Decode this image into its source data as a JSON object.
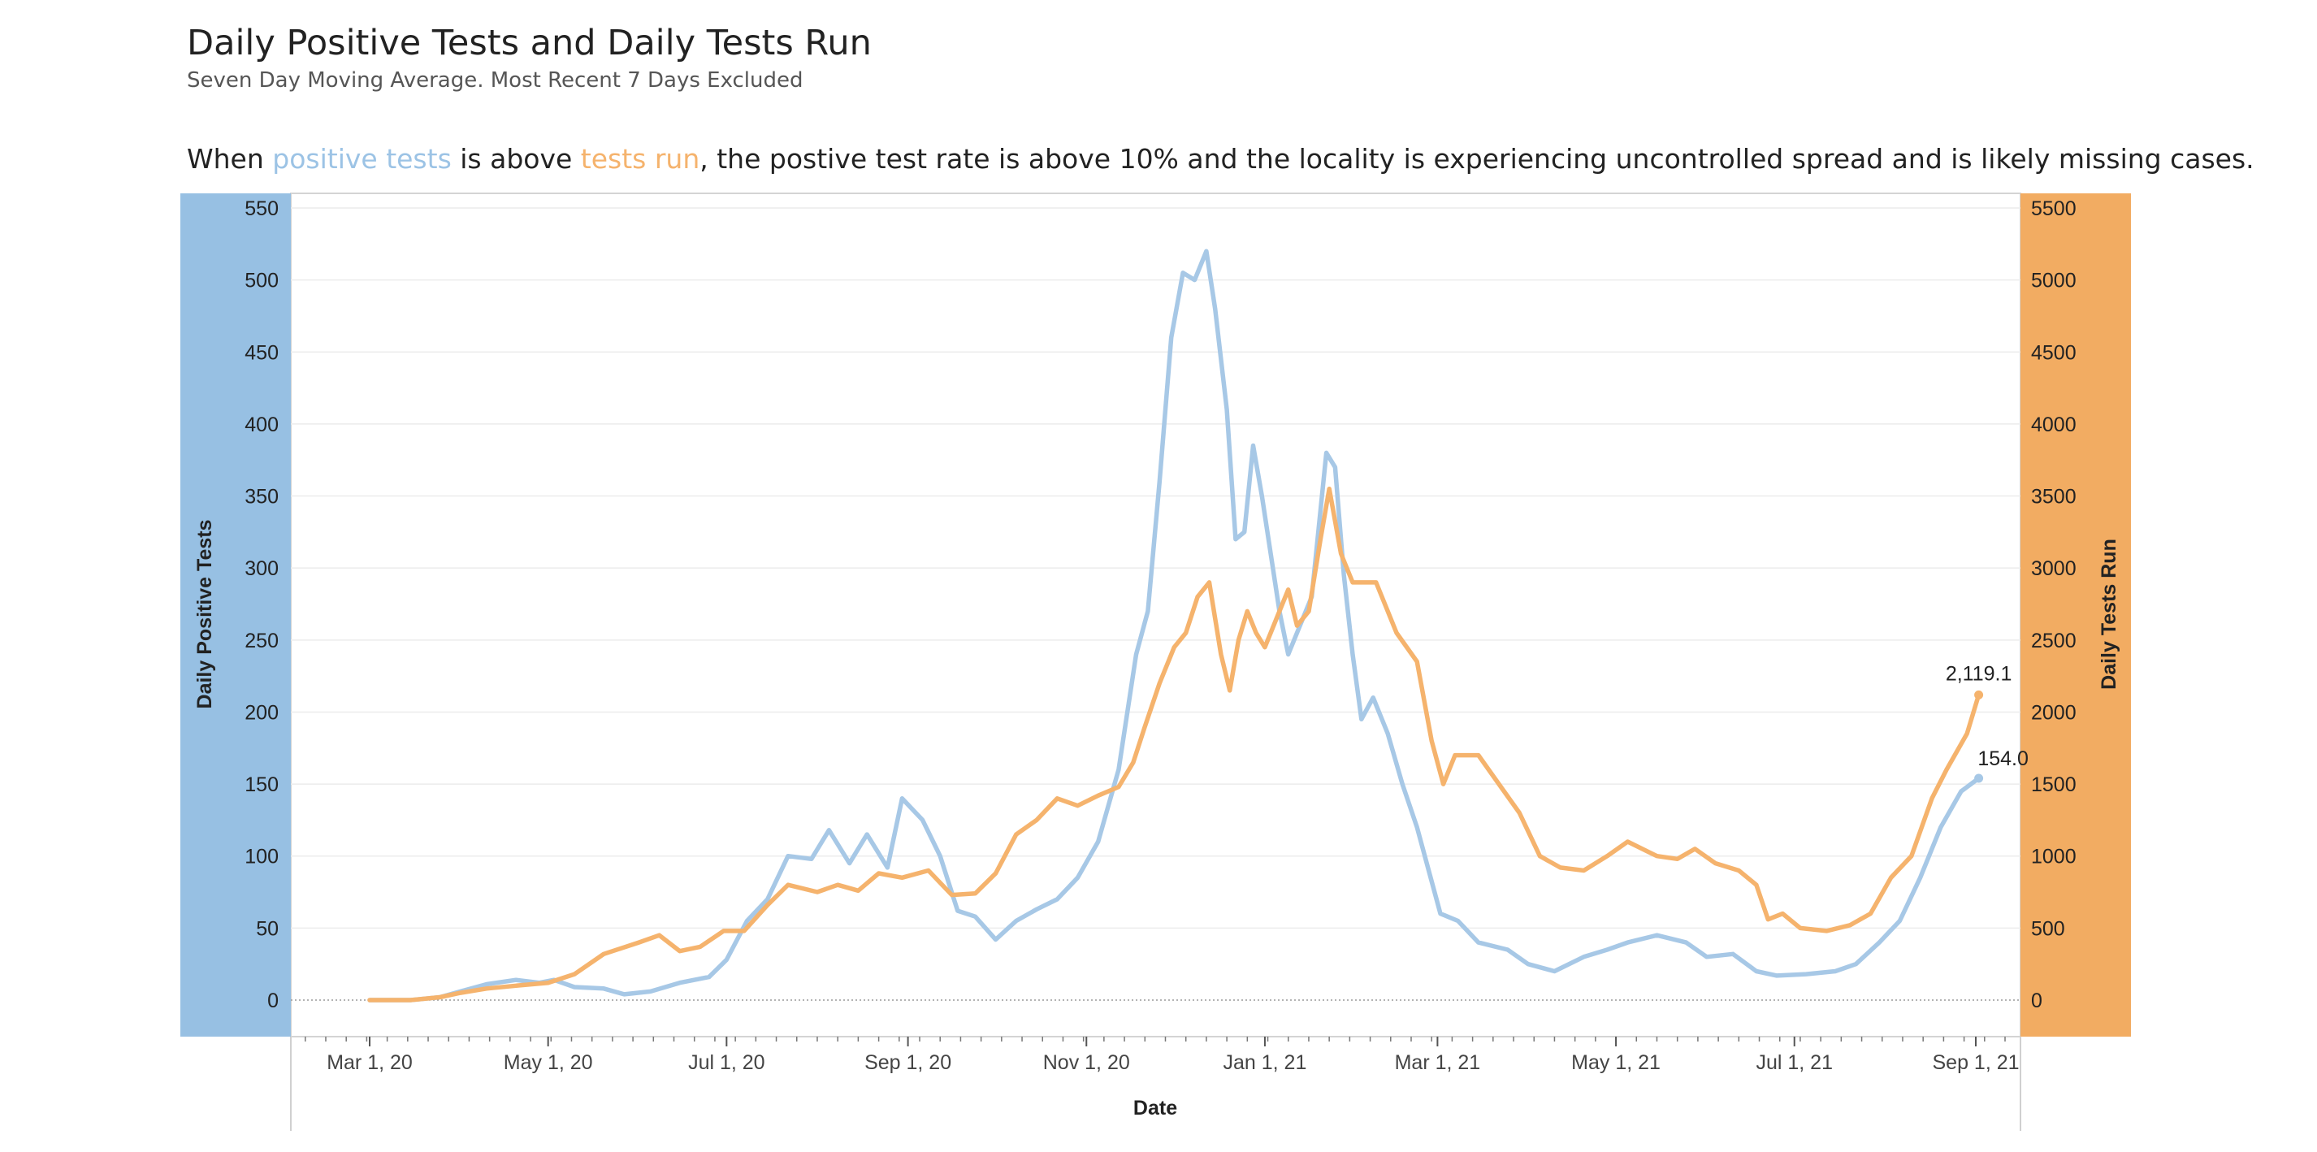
{
  "header": {
    "title": "Daily Positive Tests and Daily Tests Run",
    "subtitle": "Seven Day Moving Average. Most Recent 7 Days Excluded"
  },
  "note": {
    "prefix": "When ",
    "positive": "positive tests",
    "middle": " is above ",
    "run": "tests run",
    "suffix": ", the postive test rate is above 10% and the locality is experiencing uncontrolled spread and is likely missing cases."
  },
  "colors": {
    "positive": "#a7c8e6",
    "tests_run": "#f5b36d",
    "left_band": "#97c0e3",
    "right_band": "#f2ac62"
  },
  "chart_data": {
    "type": "line",
    "xlabel": "Date",
    "ylabel_left": "Daily Positive Tests",
    "ylabel_right": "Daily Tests Run",
    "ylim_left": [
      0,
      550
    ],
    "ylim_right": [
      0,
      5500
    ],
    "y_ticks_left": [
      "0",
      "50",
      "100",
      "150",
      "200",
      "250",
      "300",
      "350",
      "400",
      "450",
      "500",
      "550"
    ],
    "y_ticks_right": [
      "0",
      "500",
      "1000",
      "1500",
      "2000",
      "2500",
      "3000",
      "3500",
      "4000",
      "4500",
      "5000",
      "5500"
    ],
    "x_ticks": [
      {
        "date": "2020-03-01",
        "label": "Mar 1, 20"
      },
      {
        "date": "2020-05-01",
        "label": "May 1, 20"
      },
      {
        "date": "2020-07-01",
        "label": "Jul 1, 20"
      },
      {
        "date": "2020-09-01",
        "label": "Sep 1, 20"
      },
      {
        "date": "2020-11-01",
        "label": "Nov 1, 20"
      },
      {
        "date": "2021-01-01",
        "label": "Jan 1, 21"
      },
      {
        "date": "2021-03-01",
        "label": "Mar 1, 21"
      },
      {
        "date": "2021-05-01",
        "label": "May 1, 21"
      },
      {
        "date": "2021-07-01",
        "label": "Jul 1, 21"
      },
      {
        "date": "2021-09-01",
        "label": "Sep 1, 21"
      }
    ],
    "x_range": [
      "2020-02-04",
      "2021-09-15"
    ],
    "grid": true,
    "series": [
      {
        "name": "Daily Positive Tests",
        "axis": "left",
        "end_label": "154.0",
        "points": [
          [
            "2020-03-01",
            0
          ],
          [
            "2020-03-15",
            0
          ],
          [
            "2020-03-25",
            2
          ],
          [
            "2020-04-01",
            6
          ],
          [
            "2020-04-10",
            11
          ],
          [
            "2020-04-20",
            14
          ],
          [
            "2020-04-28",
            12
          ],
          [
            "2020-05-03",
            14
          ],
          [
            "2020-05-10",
            9
          ],
          [
            "2020-05-20",
            8
          ],
          [
            "2020-05-27",
            4
          ],
          [
            "2020-06-05",
            6
          ],
          [
            "2020-06-15",
            12
          ],
          [
            "2020-06-25",
            16
          ],
          [
            "2020-07-01",
            28
          ],
          [
            "2020-07-08",
            55
          ],
          [
            "2020-07-15",
            70
          ],
          [
            "2020-07-22",
            100
          ],
          [
            "2020-07-30",
            98
          ],
          [
            "2020-08-05",
            118
          ],
          [
            "2020-08-12",
            95
          ],
          [
            "2020-08-18",
            115
          ],
          [
            "2020-08-25",
            92
          ],
          [
            "2020-08-30",
            140
          ],
          [
            "2020-09-06",
            125
          ],
          [
            "2020-09-12",
            100
          ],
          [
            "2020-09-18",
            62
          ],
          [
            "2020-09-24",
            58
          ],
          [
            "2020-10-01",
            42
          ],
          [
            "2020-10-08",
            55
          ],
          [
            "2020-10-15",
            63
          ],
          [
            "2020-10-22",
            70
          ],
          [
            "2020-10-29",
            85
          ],
          [
            "2020-11-05",
            110
          ],
          [
            "2020-11-12",
            160
          ],
          [
            "2020-11-18",
            240
          ],
          [
            "2020-11-22",
            270
          ],
          [
            "2020-11-26",
            360
          ],
          [
            "2020-11-30",
            460
          ],
          [
            "2020-12-04",
            505
          ],
          [
            "2020-12-08",
            500
          ],
          [
            "2020-12-12",
            520
          ],
          [
            "2020-12-15",
            480
          ],
          [
            "2020-12-19",
            410
          ],
          [
            "2020-12-22",
            320
          ],
          [
            "2020-12-25",
            325
          ],
          [
            "2020-12-28",
            385
          ],
          [
            "2020-12-31",
            350
          ],
          [
            "2021-01-03",
            310
          ],
          [
            "2021-01-06",
            270
          ],
          [
            "2021-01-09",
            240
          ],
          [
            "2021-01-13",
            260
          ],
          [
            "2021-01-17",
            280
          ],
          [
            "2021-01-22",
            380
          ],
          [
            "2021-01-25",
            370
          ],
          [
            "2021-01-28",
            295
          ],
          [
            "2021-01-31",
            240
          ],
          [
            "2021-02-03",
            195
          ],
          [
            "2021-02-07",
            210
          ],
          [
            "2021-02-12",
            185
          ],
          [
            "2021-02-17",
            150
          ],
          [
            "2021-02-22",
            120
          ],
          [
            "2021-02-26",
            90
          ],
          [
            "2021-03-02",
            60
          ],
          [
            "2021-03-08",
            55
          ],
          [
            "2021-03-15",
            40
          ],
          [
            "2021-03-25",
            35
          ],
          [
            "2021-04-01",
            25
          ],
          [
            "2021-04-10",
            20
          ],
          [
            "2021-04-20",
            30
          ],
          [
            "2021-04-28",
            35
          ],
          [
            "2021-05-05",
            40
          ],
          [
            "2021-05-15",
            45
          ],
          [
            "2021-05-25",
            40
          ],
          [
            "2021-06-01",
            30
          ],
          [
            "2021-06-10",
            32
          ],
          [
            "2021-06-18",
            20
          ],
          [
            "2021-06-25",
            17
          ],
          [
            "2021-07-05",
            18
          ],
          [
            "2021-07-15",
            20
          ],
          [
            "2021-07-22",
            25
          ],
          [
            "2021-07-30",
            40
          ],
          [
            "2021-08-06",
            55
          ],
          [
            "2021-08-13",
            85
          ],
          [
            "2021-08-20",
            120
          ],
          [
            "2021-08-27",
            145
          ],
          [
            "2021-09-02",
            154
          ]
        ]
      },
      {
        "name": "Daily Tests Run",
        "axis": "right",
        "end_label": "2,119.1",
        "points": [
          [
            "2020-03-01",
            0
          ],
          [
            "2020-03-15",
            0
          ],
          [
            "2020-03-25",
            20
          ],
          [
            "2020-04-01",
            50
          ],
          [
            "2020-04-10",
            80
          ],
          [
            "2020-04-20",
            100
          ],
          [
            "2020-05-01",
            120
          ],
          [
            "2020-05-10",
            180
          ],
          [
            "2020-05-20",
            320
          ],
          [
            "2020-06-01",
            400
          ],
          [
            "2020-06-08",
            450
          ],
          [
            "2020-06-15",
            340
          ],
          [
            "2020-06-22",
            370
          ],
          [
            "2020-06-30",
            480
          ],
          [
            "2020-07-07",
            480
          ],
          [
            "2020-07-15",
            660
          ],
          [
            "2020-07-22",
            800
          ],
          [
            "2020-08-01",
            750
          ],
          [
            "2020-08-08",
            800
          ],
          [
            "2020-08-15",
            760
          ],
          [
            "2020-08-22",
            880
          ],
          [
            "2020-08-30",
            850
          ],
          [
            "2020-09-08",
            900
          ],
          [
            "2020-09-16",
            730
          ],
          [
            "2020-09-24",
            740
          ],
          [
            "2020-10-01",
            880
          ],
          [
            "2020-10-08",
            1150
          ],
          [
            "2020-10-15",
            1250
          ],
          [
            "2020-10-22",
            1400
          ],
          [
            "2020-10-29",
            1350
          ],
          [
            "2020-11-05",
            1420
          ],
          [
            "2020-11-12",
            1480
          ],
          [
            "2020-11-17",
            1650
          ],
          [
            "2020-11-21",
            1900
          ],
          [
            "2020-11-26",
            2200
          ],
          [
            "2020-12-01",
            2450
          ],
          [
            "2020-12-05",
            2550
          ],
          [
            "2020-12-09",
            2800
          ],
          [
            "2020-12-13",
            2900
          ],
          [
            "2020-12-17",
            2400
          ],
          [
            "2020-12-20",
            2150
          ],
          [
            "2020-12-23",
            2500
          ],
          [
            "2020-12-26",
            2700
          ],
          [
            "2020-12-29",
            2550
          ],
          [
            "2021-01-01",
            2450
          ],
          [
            "2021-01-05",
            2650
          ],
          [
            "2021-01-09",
            2850
          ],
          [
            "2021-01-12",
            2600
          ],
          [
            "2021-01-16",
            2700
          ],
          [
            "2021-01-20",
            3200
          ],
          [
            "2021-01-23",
            3550
          ],
          [
            "2021-01-27",
            3100
          ],
          [
            "2021-01-31",
            2900
          ],
          [
            "2021-02-04",
            2900
          ],
          [
            "2021-02-08",
            2900
          ],
          [
            "2021-02-15",
            2550
          ],
          [
            "2021-02-22",
            2350
          ],
          [
            "2021-02-27",
            1800
          ],
          [
            "2021-03-03",
            1500
          ],
          [
            "2021-03-07",
            1700
          ],
          [
            "2021-03-15",
            1700
          ],
          [
            "2021-03-22",
            1500
          ],
          [
            "2021-03-29",
            1300
          ],
          [
            "2021-04-05",
            1000
          ],
          [
            "2021-04-12",
            920
          ],
          [
            "2021-04-20",
            900
          ],
          [
            "2021-04-28",
            1000
          ],
          [
            "2021-05-05",
            1100
          ],
          [
            "2021-05-15",
            1000
          ],
          [
            "2021-05-22",
            980
          ],
          [
            "2021-05-28",
            1050
          ],
          [
            "2021-06-04",
            950
          ],
          [
            "2021-06-12",
            900
          ],
          [
            "2021-06-18",
            800
          ],
          [
            "2021-06-22",
            560
          ],
          [
            "2021-06-27",
            600
          ],
          [
            "2021-07-03",
            500
          ],
          [
            "2021-07-12",
            480
          ],
          [
            "2021-07-20",
            520
          ],
          [
            "2021-07-27",
            600
          ],
          [
            "2021-08-03",
            850
          ],
          [
            "2021-08-10",
            1000
          ],
          [
            "2021-08-17",
            1400
          ],
          [
            "2021-08-22",
            1600
          ],
          [
            "2021-08-29",
            1850
          ],
          [
            "2021-09-02",
            2119.1
          ]
        ]
      }
    ]
  }
}
